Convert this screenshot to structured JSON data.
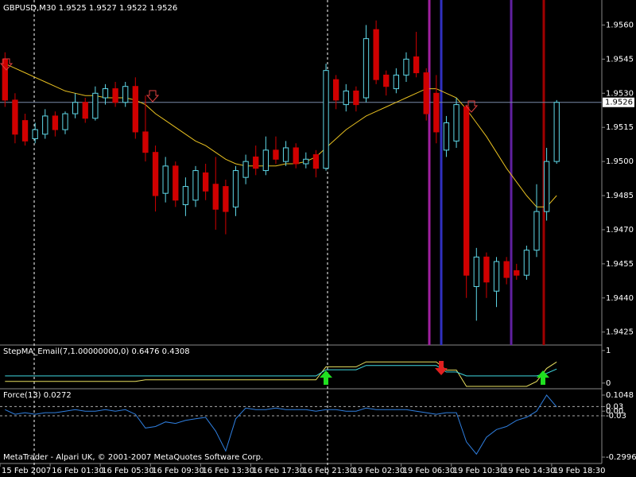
{
  "chart_data": [
    {
      "type": "candlestick",
      "title": "GBPUSD,M30  1.9525 1.9527 1.9522 1.9526",
      "up_color": "#5fd8e8",
      "down_color": "#d00000",
      "ma_color": "#e8c020",
      "price_line_color": "#7a8aa8",
      "xlim": [
        0,
        60
      ],
      "xticks": [
        {
          "value": 0,
          "label": "15 Feb 2007"
        },
        {
          "value": 5,
          "label": "16 Feb 01:30"
        },
        {
          "value": 10,
          "label": "16 Feb 05:30"
        },
        {
          "value": 15,
          "label": "16 Feb 09:30"
        },
        {
          "value": 20,
          "label": "16 Feb 13:30"
        },
        {
          "value": 25,
          "label": "16 Feb 17:30"
        },
        {
          "value": 30,
          "label": "16 Feb 21:30"
        },
        {
          "value": 35,
          "label": "19 Feb 02:30"
        },
        {
          "value": 40,
          "label": "19 Feb 06:30"
        },
        {
          "value": 45,
          "label": "19 Feb 10:30"
        },
        {
          "value": 50,
          "label": "19 Feb 14:30"
        },
        {
          "value": 55,
          "label": "19 Feb 18:30"
        }
      ],
      "ylim": [
        1.942,
        1.9571
      ],
      "yticks": [
        {
          "value": 1.956,
          "label": "1.9560"
        },
        {
          "value": 1.9545,
          "label": "1.9545"
        },
        {
          "value": 1.953,
          "label": "1.9530"
        },
        {
          "value": 1.9515,
          "label": "1.9515"
        },
        {
          "value": 1.95,
          "label": "1.9500"
        },
        {
          "value": 1.9485,
          "label": "1.9485"
        },
        {
          "value": 1.947,
          "label": "1.9470"
        },
        {
          "value": 1.9455,
          "label": "1.9455"
        },
        {
          "value": 1.944,
          "label": "1.9440"
        },
        {
          "value": 1.9425,
          "label": "1.9425"
        }
      ],
      "current_price": 1.9526,
      "ohlc": [
        [
          1.9545,
          1.9548,
          1.9524,
          1.9527
        ],
        [
          1.9527,
          1.953,
          1.9508,
          1.9512
        ],
        [
          1.9518,
          1.9521,
          1.9507,
          1.9509
        ],
        [
          1.951,
          1.9517,
          1.9508,
          1.9514
        ],
        [
          1.9512,
          1.9523,
          1.951,
          1.952
        ],
        [
          1.952,
          1.9522,
          1.9511,
          1.9514
        ],
        [
          1.9514,
          1.9522,
          1.9512,
          1.9521
        ],
        [
          1.9521,
          1.953,
          1.9519,
          1.9526
        ],
        [
          1.9526,
          1.9528,
          1.9517,
          1.9519
        ],
        [
          1.9519,
          1.9533,
          1.9518,
          1.953
        ],
        [
          1.9528,
          1.9534,
          1.9525,
          1.9532
        ],
        [
          1.9532,
          1.9535,
          1.9524,
          1.9526
        ],
        [
          1.9526,
          1.9535,
          1.9524,
          1.9533
        ],
        [
          1.9533,
          1.9537,
          1.951,
          1.9513
        ],
        [
          1.9513,
          1.9529,
          1.95,
          1.9504
        ],
        [
          1.9504,
          1.9507,
          1.9478,
          1.9485
        ],
        [
          1.9486,
          1.9502,
          1.9482,
          1.9498
        ],
        [
          1.9498,
          1.95,
          1.948,
          1.9483
        ],
        [
          1.9481,
          1.9493,
          1.9476,
          1.9489
        ],
        [
          1.9483,
          1.9498,
          1.948,
          1.9496
        ],
        [
          1.9495,
          1.9499,
          1.9483,
          1.9487
        ],
        [
          1.949,
          1.9502,
          1.947,
          1.9479
        ],
        [
          1.9489,
          1.9492,
          1.9468,
          1.9478
        ],
        [
          1.948,
          1.9498,
          1.9476,
          1.9496
        ],
        [
          1.9493,
          1.9503,
          1.949,
          1.95
        ],
        [
          1.9502,
          1.9507,
          1.9494,
          1.9497
        ],
        [
          1.9496,
          1.9511,
          1.9494,
          1.9505
        ],
        [
          1.9505,
          1.9511,
          1.9499,
          1.9501
        ],
        [
          1.95,
          1.9509,
          1.9498,
          1.9506
        ],
        [
          1.9506,
          1.9508,
          1.9497,
          1.9499
        ],
        [
          1.9499,
          1.9504,
          1.9497,
          1.9501
        ],
        [
          1.9503,
          1.9505,
          1.9493,
          1.9497
        ],
        [
          1.9497,
          1.9543,
          1.9496,
          1.954
        ],
        [
          1.9536,
          1.9538,
          1.9523,
          1.9527
        ],
        [
          1.9525,
          1.9534,
          1.9522,
          1.9531
        ],
        [
          1.9531,
          1.9533,
          1.9522,
          1.9525
        ],
        [
          1.9528,
          1.956,
          1.9526,
          1.9554
        ],
        [
          1.9558,
          1.9562,
          1.9534,
          1.9536
        ],
        [
          1.9538,
          1.954,
          1.9529,
          1.9533
        ],
        [
          1.9532,
          1.9541,
          1.953,
          1.9538
        ],
        [
          1.9538,
          1.9548,
          1.9535,
          1.9545
        ],
        [
          1.9546,
          1.9557,
          1.9537,
          1.9539
        ],
        [
          1.9539,
          1.9541,
          1.9518,
          1.9521
        ],
        [
          1.953,
          1.9538,
          1.9508,
          1.9513
        ],
        [
          1.9505,
          1.952,
          1.9502,
          1.9517
        ],
        [
          1.9509,
          1.9528,
          1.9506,
          1.9525
        ],
        [
          1.9524,
          1.9525,
          1.944,
          1.945
        ],
        [
          1.9445,
          1.9462,
          1.943,
          1.9458
        ],
        [
          1.9458,
          1.946,
          1.944,
          1.9447
        ],
        [
          1.9443,
          1.9458,
          1.9436,
          1.9456
        ],
        [
          1.9456,
          1.9458,
          1.9446,
          1.9449
        ],
        [
          1.9452,
          1.9455,
          1.9448,
          1.945
        ],
        [
          1.945,
          1.9463,
          1.9448,
          1.9461
        ],
        [
          1.9461,
          1.949,
          1.9458,
          1.9478
        ],
        [
          1.9478,
          1.9506,
          1.9474,
          1.95
        ],
        [
          1.95,
          1.9527,
          1.9499,
          1.9526
        ]
      ],
      "moving_average": [
        1.9543,
        1.9541,
        1.9539,
        1.9537,
        1.9535,
        1.9533,
        1.9531,
        1.953,
        1.9529,
        1.9529,
        1.9528,
        1.9528,
        1.9528,
        1.9527,
        1.9525,
        1.9521,
        1.9518,
        1.9515,
        1.9512,
        1.9509,
        1.9507,
        1.9504,
        1.9501,
        1.9499,
        1.9498,
        1.9498,
        1.9498,
        1.9498,
        1.9499,
        1.9499,
        1.95,
        1.9502,
        1.9506,
        1.951,
        1.9514,
        1.9517,
        1.952,
        1.9522,
        1.9524,
        1.9526,
        1.9528,
        1.953,
        1.9532,
        1.9532,
        1.953,
        1.9528,
        1.9523,
        1.9517,
        1.9511,
        1.9504,
        1.9497,
        1.9491,
        1.9485,
        1.948,
        1.948,
        1.9485
      ]
    },
    {
      "type": "line",
      "title": "StepMA_Email(7,1.00000000,0) 0.6476 0.4308",
      "ylim": [
        -0.15,
        1.12
      ],
      "yticks": [
        0,
        1
      ],
      "series": [
        {
          "color": "#e8e060",
          "values": [
            0.05,
            0.05,
            0.05,
            0.05,
            0.05,
            0.05,
            0.05,
            0.05,
            0.05,
            0.05,
            0.05,
            0.05,
            0.05,
            0.05,
            0.1,
            0.1,
            0.1,
            0.1,
            0.1,
            0.1,
            0.1,
            0.1,
            0.1,
            0.1,
            0.1,
            0.1,
            0.1,
            0.1,
            0.1,
            0.1,
            0.1,
            0.1,
            0.5,
            0.5,
            0.5,
            0.5,
            0.65,
            0.65,
            0.65,
            0.65,
            0.65,
            0.65,
            0.65,
            0.65,
            0.4,
            0.4,
            -0.1,
            -0.1,
            -0.1,
            -0.1,
            -0.1,
            -0.1,
            -0.1,
            0.05,
            0.45,
            0.6476
          ]
        },
        {
          "color": "#40d8e0",
          "values": [
            0.22,
            0.22,
            0.22,
            0.22,
            0.22,
            0.22,
            0.22,
            0.22,
            0.22,
            0.22,
            0.22,
            0.22,
            0.22,
            0.22,
            0.22,
            0.22,
            0.22,
            0.22,
            0.22,
            0.22,
            0.22,
            0.22,
            0.22,
            0.22,
            0.22,
            0.22,
            0.22,
            0.22,
            0.22,
            0.22,
            0.22,
            0.22,
            0.41,
            0.41,
            0.41,
            0.41,
            0.54,
            0.54,
            0.54,
            0.54,
            0.54,
            0.54,
            0.54,
            0.54,
            0.34,
            0.34,
            0.22,
            0.22,
            0.22,
            0.22,
            0.22,
            0.22,
            0.22,
            0.22,
            0.3,
            0.4308
          ]
        }
      ]
    },
    {
      "type": "line",
      "title": "Force(13) 0.0272",
      "annotation": "MetaTrader - Alpari UK, © 2001-2007 MetaQuotes Software Corp.",
      "ylim": [
        -0.336,
        0.141
      ],
      "yticks": [
        0.1048,
        0.03,
        {
          "value": 0,
          "label": "0.00"
        },
        -0.03,
        -0.2996
      ],
      "levels": [
        0.03,
        -0.03
      ],
      "series": [
        {
          "color": "#2f7fe0",
          "values": [
            0.01,
            -0.02,
            -0.01,
            -0.02,
            -0.01,
            -0.01,
            0.0,
            0.01,
            0.0,
            0.0,
            0.01,
            0.0,
            0.01,
            -0.02,
            -0.11,
            -0.1,
            -0.07,
            -0.08,
            -0.06,
            -0.05,
            -0.04,
            -0.13,
            -0.26,
            -0.05,
            0.02,
            0.01,
            0.01,
            0.02,
            0.01,
            0.01,
            0.01,
            0.0,
            0.01,
            0.01,
            0.0,
            0.0,
            0.02,
            0.01,
            0.01,
            0.01,
            0.01,
            0.0,
            -0.01,
            -0.02,
            -0.01,
            -0.01,
            -0.2,
            -0.28,
            -0.17,
            -0.12,
            -0.1,
            -0.06,
            -0.04,
            0.0,
            0.1048,
            0.0272
          ]
        }
      ]
    }
  ]
}
